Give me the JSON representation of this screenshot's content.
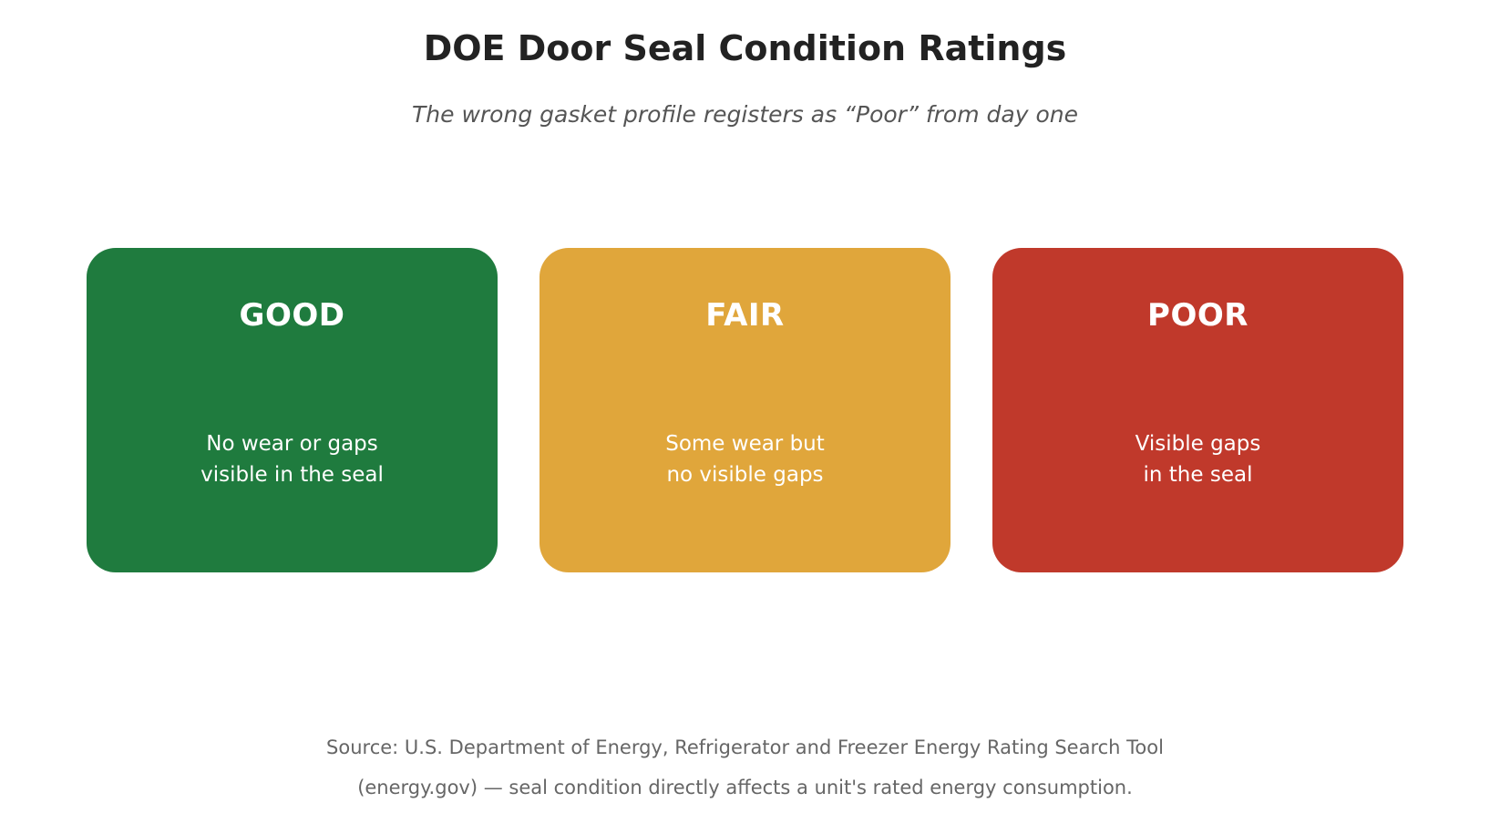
{
  "header": {
    "title": "DOE Door Seal Condition Ratings",
    "subtitle": "The wrong gasket profile registers as “Poor” from day one"
  },
  "ratings": [
    {
      "label": "GOOD",
      "description_lines": [
        "No wear or gaps",
        "visible in the seal"
      ],
      "color": "#1f7b3e"
    },
    {
      "label": "FAIR",
      "description_lines": [
        "Some wear but",
        "no visible gaps"
      ],
      "color": "#e0a63b"
    },
    {
      "label": "POOR",
      "description_lines": [
        "Visible gaps",
        "in the seal"
      ],
      "color": "#c0392b"
    }
  ],
  "footer": {
    "source_lines": [
      "Source: U.S. Department of Energy, Refrigerator and Freezer Energy Rating Search Tool",
      "(energy.gov) — seal condition directly affects a unit's rated energy consumption."
    ]
  }
}
